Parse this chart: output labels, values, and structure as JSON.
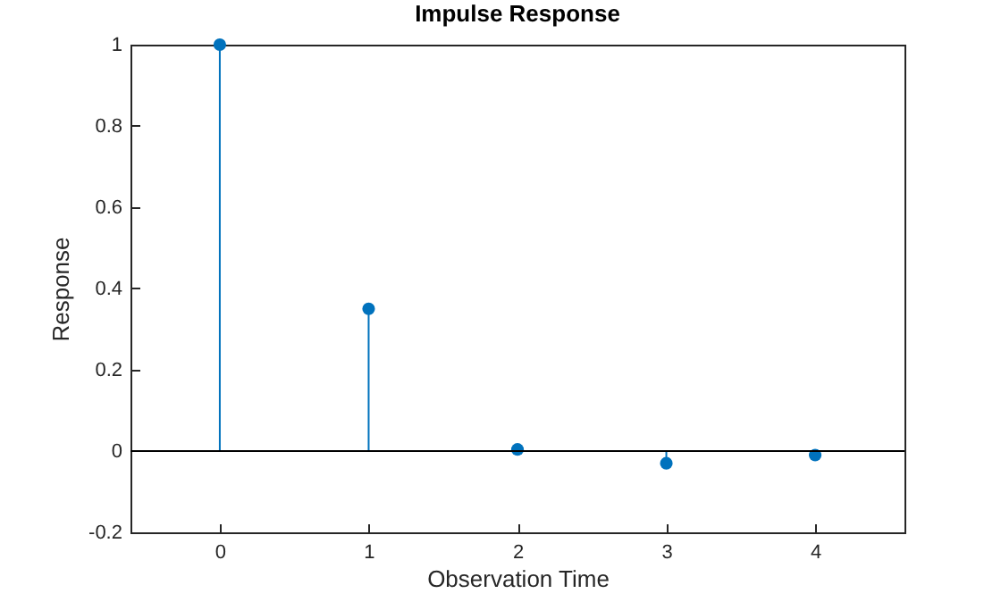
{
  "chart_data": {
    "type": "lollipop",
    "title": "Impulse Response",
    "xlabel": "Observation Time",
    "ylabel": "Response",
    "x": [
      0,
      1,
      2,
      3,
      4
    ],
    "series": [
      {
        "color": "#0072bd",
        "values": [
          1,
          0.35,
          0.004,
          -0.03,
          -0.01
        ]
      }
    ],
    "xlim": [
      -0.6,
      4.6
    ],
    "xticks": [
      0,
      1,
      2,
      3,
      4
    ],
    "ylim": [
      -0.2,
      1
    ],
    "yticks": [
      -0.2,
      0,
      0.2,
      0.4,
      0.6,
      0.8,
      1
    ],
    "ref_lines": [
      {
        "axis": "y",
        "value": 0,
        "color": "#000000"
      }
    ],
    "marker": "circle",
    "grid": false
  }
}
